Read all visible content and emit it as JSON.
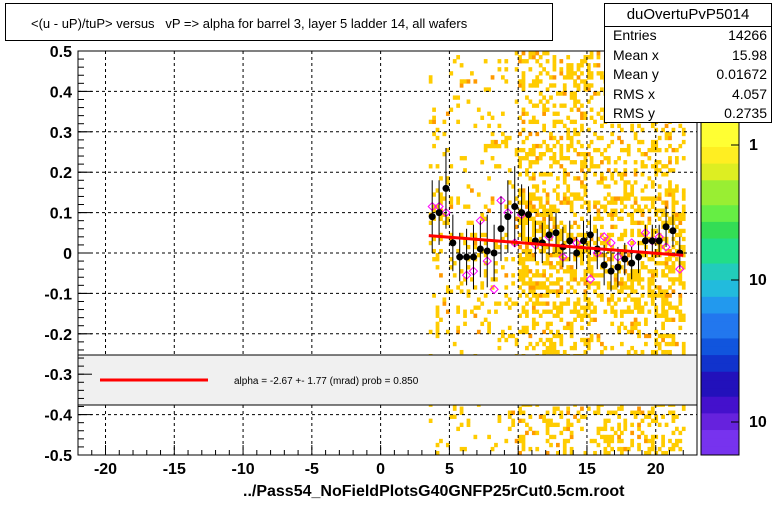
{
  "title": "<(u - uP)/tuP> versus   vP => alpha for barrel 3, layer 5 ladder 14, all wafers",
  "xlabel": "../Pass54_NoFieldPlotsG40GNFP25rCut0.5cm.root",
  "stats": {
    "name": "duOvertuPvP5014",
    "rows": [
      {
        "key": "Entries",
        "value": "14266"
      },
      {
        "key": "Mean x",
        "value": "15.98"
      },
      {
        "key": "Mean y",
        "value": "0.01672"
      },
      {
        "key": "RMS x",
        "value": "4.057"
      },
      {
        "key": "RMS y",
        "value": "0.2735"
      }
    ]
  },
  "legend_text": "alpha =   -2.67 +-  1.77 (mrad) prob = 0.850",
  "palette_labels": [
    "1",
    "10",
    "10"
  ],
  "colors": {
    "fit": "#ff0000",
    "points": "#000000",
    "open_markers": "#ff00ff",
    "histogram": "#ffcc00"
  },
  "chart_data": {
    "type": "scatter",
    "xlim": [
      -22,
      23
    ],
    "ylim": [
      -0.5,
      0.5
    ],
    "x_ticks": [
      -20,
      -15,
      -10,
      -5,
      0,
      5,
      10,
      15,
      20
    ],
    "y_ticks": [
      -0.5,
      -0.4,
      -0.3,
      -0.2,
      -0.1,
      0,
      0.1,
      0.2,
      0.3,
      0.4,
      0.5
    ],
    "grid": true,
    "fit_line": {
      "x": [
        3.5,
        22
      ],
      "y": [
        0.043,
        -0.006
      ]
    },
    "profile_points": {
      "x": [
        3.75,
        4.25,
        4.75,
        5.25,
        5.75,
        6.25,
        6.75,
        7.25,
        7.75,
        8.25,
        8.75,
        9.25,
        9.75,
        10.25,
        10.75,
        11.25,
        11.75,
        12.25,
        12.75,
        13.25,
        13.75,
        14.25,
        14.75,
        15.25,
        15.75,
        16.25,
        16.75,
        17.25,
        17.75,
        18.25,
        18.75,
        19.25,
        19.75,
        20.25,
        20.75,
        21.25,
        21.75
      ],
      "y": [
        0.09,
        0.1,
        0.16,
        0.025,
        -0.01,
        -0.01,
        -0.01,
        0.01,
        0.005,
        0.0,
        0.06,
        0.09,
        0.115,
        0.1,
        0.095,
        0.03,
        0.025,
        0.045,
        0.05,
        0.015,
        0.03,
        0.0,
        0.03,
        0.045,
        0.01,
        -0.03,
        -0.045,
        -0.035,
        -0.015,
        -0.025,
        -0.01,
        0.03,
        0.03,
        0.03,
        0.065,
        0.055,
        0.0
      ],
      "yerr": [
        0.09,
        0.08,
        0.1,
        0.07,
        0.06,
        0.07,
        0.08,
        0.07,
        0.09,
        0.07,
        0.08,
        0.09,
        0.1,
        0.07,
        0.07,
        0.05,
        0.05,
        0.05,
        0.05,
        0.05,
        0.05,
        0.04,
        0.05,
        0.05,
        0.05,
        0.05,
        0.05,
        0.05,
        0.04,
        0.04,
        0.04,
        0.04,
        0.04,
        0.04,
        0.05,
        0.04,
        0.04
      ]
    },
    "open_markers": {
      "x": [
        3.75,
        4.25,
        4.75,
        6.25,
        6.75,
        7.25,
        7.75,
        8.25,
        8.75,
        9.25,
        9.75,
        10.25,
        11.25,
        12.25,
        13.25,
        14.25,
        15.25,
        15.75,
        16.25,
        16.75,
        17.25,
        18.25,
        19.25,
        19.75,
        20.25,
        20.75,
        21.75
      ],
      "y": [
        0.115,
        0.115,
        0.1,
        -0.055,
        -0.045,
        0.08,
        -0.02,
        -0.09,
        0.13,
        0.1,
        0.025,
        0.095,
        0.02,
        0.04,
        -0.01,
        0.025,
        -0.065,
        0.0,
        0.04,
        0.025,
        -0.01,
        0.025,
        0.05,
        0.03,
        0.04,
        0.015,
        -0.04
      ]
    }
  }
}
